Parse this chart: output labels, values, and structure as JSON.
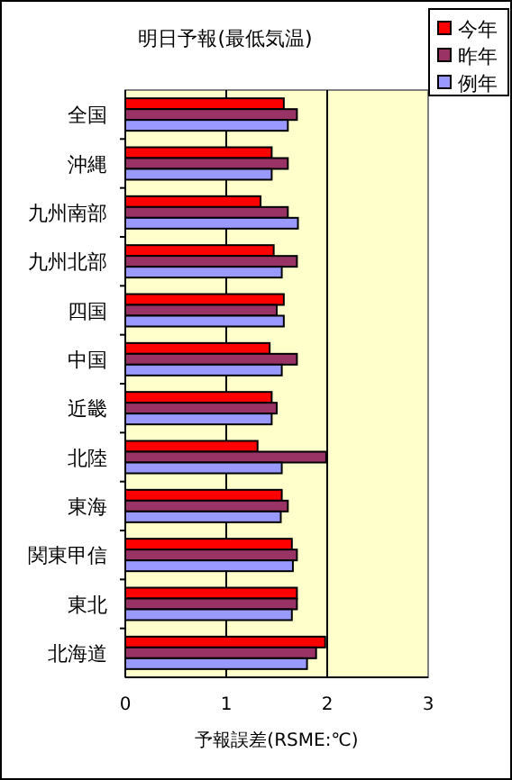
{
  "chart_data": {
    "type": "bar",
    "orientation": "horizontal",
    "title": "明日予報(最低気温)",
    "xlabel": "予報誤差(RSME:℃)",
    "categories": [
      "全国",
      "沖縄",
      "九州南部",
      "九州北部",
      "四国",
      "中国",
      "近畿",
      "北陸",
      "東海",
      "関東甲信",
      "東北",
      "北海道"
    ],
    "series": [
      {
        "name": "今年",
        "color": "#ff0000",
        "values": [
          1.57,
          1.45,
          1.34,
          1.47,
          1.57,
          1.43,
          1.45,
          1.31,
          1.55,
          1.65,
          1.7,
          1.98
        ]
      },
      {
        "name": "昨年",
        "color": "#993366",
        "values": [
          1.7,
          1.61,
          1.61,
          1.7,
          1.5,
          1.7,
          1.5,
          1.99,
          1.61,
          1.7,
          1.7,
          1.89
        ]
      },
      {
        "name": "例年",
        "color": "#9999ff",
        "values": [
          1.61,
          1.45,
          1.71,
          1.55,
          1.57,
          1.55,
          1.45,
          1.55,
          1.54,
          1.66,
          1.65,
          1.8
        ]
      }
    ],
    "xlim": [
      0,
      3
    ],
    "xticks": [
      0,
      1,
      2,
      3
    ],
    "grid": "x",
    "legend": "top right"
  }
}
